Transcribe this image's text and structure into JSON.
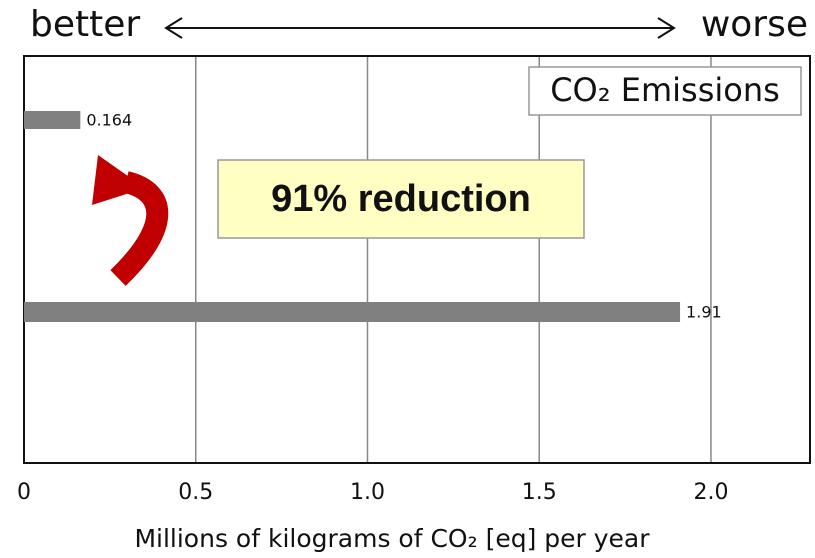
{
  "chart_data": {
    "type": "barh",
    "annotations": {
      "left": "better",
      "right": "worse",
      "callout": "91% reduction"
    },
    "legend_box": "CO₂ Emissions",
    "xlabel": "Millions of kilograms of CO₂ [eq] per year",
    "categories": [
      null,
      null
    ],
    "values": [
      0.164,
      1.91
    ],
    "color": "#808080",
    "xlim": [
      0,
      2.3
    ],
    "xticks": [
      0,
      0.5,
      {
        "value": 1,
        "label": "1.0"
      },
      1.5,
      {
        "value": 2,
        "label": "2.0"
      }
    ],
    "grid": true
  }
}
